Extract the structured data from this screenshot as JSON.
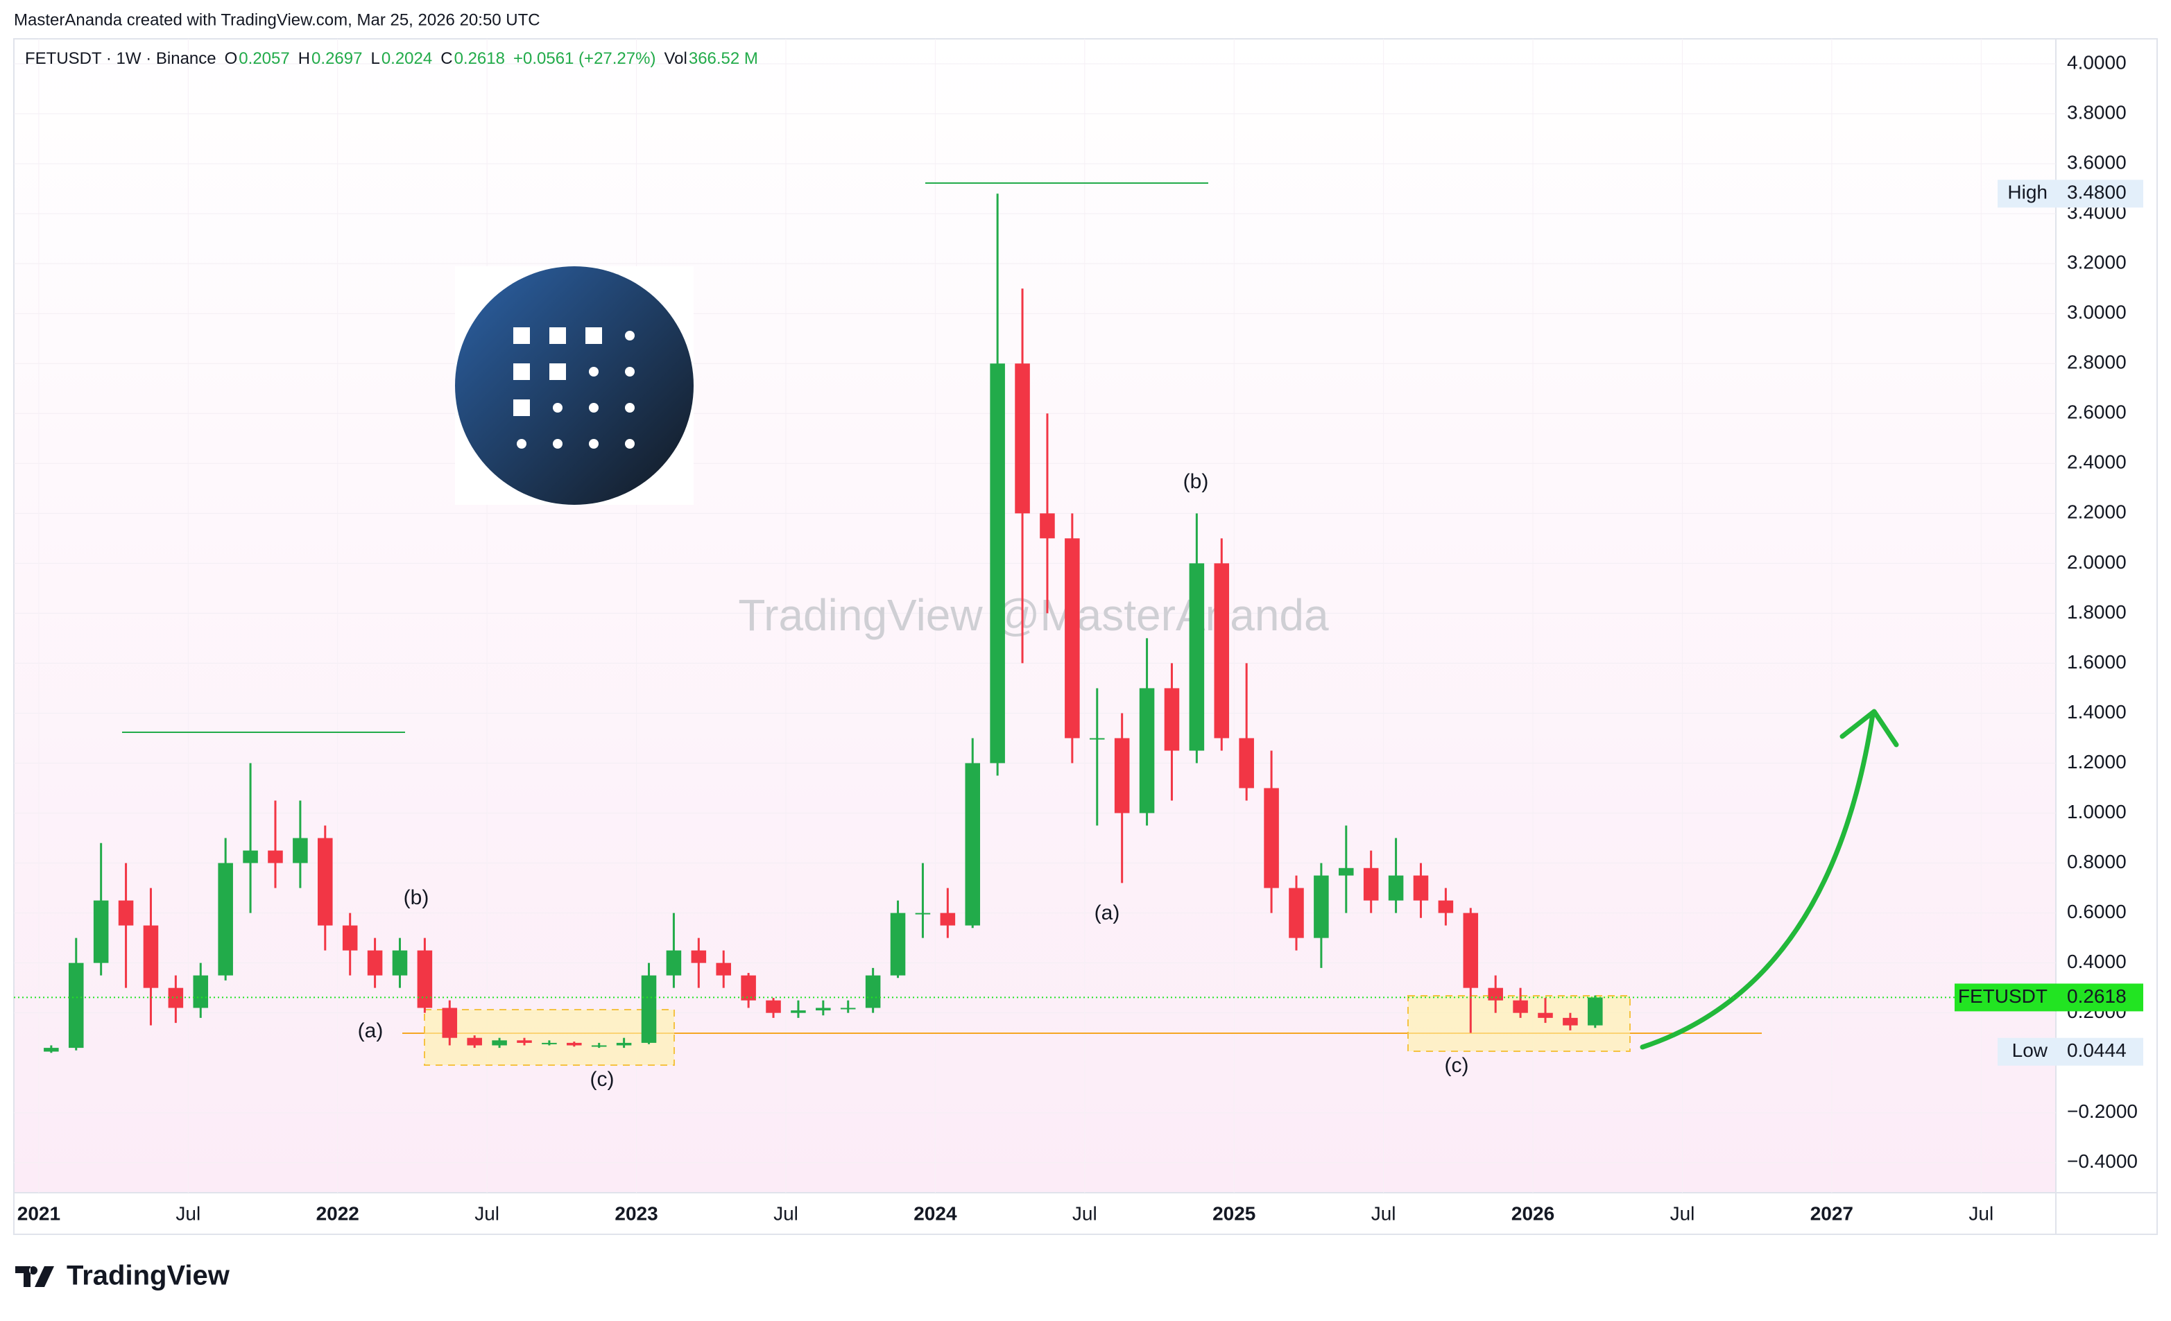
{
  "header": {
    "credit": "MasterAnanda created with TradingView.com, Mar 25, 2026 20:50 UTC"
  },
  "legend": {
    "symbol": "FETUSDT · 1W · Binance",
    "fields": [
      {
        "key": "O",
        "value": "0.2057"
      },
      {
        "key": "H",
        "value": "0.2697"
      },
      {
        "key": "L",
        "value": "0.2024"
      },
      {
        "key": "C",
        "value": "0.2618"
      }
    ],
    "change": "+0.0561 (+27.27%)",
    "vol_key": "Vol",
    "vol": "366.52 M"
  },
  "annotations": {
    "watermark": "TradingView @MasterAnanda",
    "labels": [
      "(b)",
      "(a)",
      "(c)",
      "(a)",
      "(b)",
      "(c)"
    ]
  },
  "footer": {
    "logo": "TradingView"
  },
  "chart_data": {
    "type": "candlestick",
    "up_color": "#22ab4a",
    "down_color": "#f23645",
    "x": [
      "2021-01",
      "2021-02",
      "2021-03",
      "2021-04",
      "2021-05",
      "2021-06",
      "2021-07",
      "2021-08",
      "2021-09",
      "2021-10",
      "2021-11",
      "2021-12",
      "2022-01",
      "2022-02",
      "2022-03",
      "2022-04",
      "2022-05",
      "2022-06",
      "2022-07",
      "2022-08",
      "2022-09",
      "2022-10",
      "2022-11",
      "2022-12",
      "2023-01",
      "2023-02",
      "2023-03",
      "2023-04",
      "2023-05",
      "2023-06",
      "2023-07",
      "2023-08",
      "2023-09",
      "2023-10",
      "2023-11",
      "2023-12",
      "2024-01",
      "2024-02",
      "2024-03",
      "2024-04",
      "2024-05",
      "2024-06",
      "2024-07",
      "2024-08",
      "2024-09",
      "2024-10",
      "2024-11",
      "2024-12",
      "2025-01",
      "2025-02",
      "2025-03",
      "2025-04",
      "2025-05",
      "2025-06",
      "2025-07",
      "2025-08",
      "2025-09",
      "2025-10",
      "2025-11",
      "2025-12",
      "2026-01",
      "2026-02",
      "2026-03"
    ],
    "open": [
      0.045,
      0.06,
      0.4,
      0.65,
      0.55,
      0.3,
      0.22,
      0.35,
      0.8,
      0.85,
      0.8,
      0.9,
      0.55,
      0.45,
      0.35,
      0.45,
      0.22,
      0.1,
      0.07,
      0.09,
      0.08,
      0.08,
      0.07,
      0.07,
      0.08,
      0.35,
      0.45,
      0.4,
      0.35,
      0.25,
      0.2,
      0.21,
      0.22,
      0.22,
      0.35,
      0.6,
      0.6,
      0.55,
      1.2,
      2.8,
      2.2,
      2.1,
      1.3,
      1.3,
      1.0,
      1.5,
      1.25,
      2.0,
      1.3,
      1.1,
      0.7,
      0.5,
      0.75,
      0.78,
      0.65,
      0.75,
      0.65,
      0.6,
      0.3,
      0.25,
      0.2,
      0.18,
      0.15
    ],
    "high": [
      0.07,
      0.5,
      0.88,
      0.8,
      0.7,
      0.35,
      0.4,
      0.9,
      1.2,
      1.05,
      1.05,
      0.95,
      0.6,
      0.5,
      0.5,
      0.5,
      0.25,
      0.11,
      0.1,
      0.1,
      0.09,
      0.085,
      0.08,
      0.1,
      0.4,
      0.6,
      0.5,
      0.45,
      0.36,
      0.26,
      0.25,
      0.25,
      0.25,
      0.38,
      0.65,
      0.8,
      0.7,
      1.3,
      3.48,
      3.1,
      2.6,
      2.2,
      1.5,
      1.4,
      1.7,
      1.6,
      2.2,
      2.1,
      1.6,
      1.25,
      0.75,
      0.8,
      0.95,
      0.85,
      0.9,
      0.8,
      0.7,
      0.62,
      0.35,
      0.3,
      0.26,
      0.2,
      0.2697
    ],
    "low": [
      0.04,
      0.05,
      0.35,
      0.3,
      0.15,
      0.16,
      0.18,
      0.33,
      0.6,
      0.7,
      0.7,
      0.45,
      0.35,
      0.3,
      0.3,
      0.2,
      0.07,
      0.06,
      0.06,
      0.07,
      0.07,
      0.065,
      0.06,
      0.06,
      0.075,
      0.3,
      0.3,
      0.3,
      0.22,
      0.18,
      0.18,
      0.19,
      0.2,
      0.2,
      0.34,
      0.5,
      0.5,
      0.54,
      1.15,
      1.6,
      1.8,
      1.2,
      0.95,
      0.72,
      0.95,
      1.05,
      1.2,
      1.25,
      1.05,
      0.6,
      0.45,
      0.38,
      0.6,
      0.6,
      0.6,
      0.58,
      0.55,
      0.12,
      0.2,
      0.18,
      0.16,
      0.13,
      0.14
    ],
    "close": [
      0.06,
      0.4,
      0.65,
      0.55,
      0.3,
      0.22,
      0.35,
      0.8,
      0.85,
      0.8,
      0.9,
      0.55,
      0.45,
      0.35,
      0.45,
      0.22,
      0.1,
      0.07,
      0.09,
      0.08,
      0.08,
      0.07,
      0.07,
      0.08,
      0.35,
      0.45,
      0.4,
      0.35,
      0.25,
      0.2,
      0.21,
      0.22,
      0.22,
      0.35,
      0.6,
      0.6,
      0.55,
      1.2,
      2.8,
      2.2,
      2.1,
      1.3,
      1.3,
      1.0,
      1.5,
      1.25,
      2.0,
      1.3,
      1.1,
      0.7,
      0.5,
      0.75,
      0.78,
      0.65,
      0.75,
      0.65,
      0.6,
      0.3,
      0.25,
      0.2,
      0.18,
      0.15,
      0.2618
    ],
    "xlim": [
      "2020-12",
      "2027-10"
    ],
    "xticks": [
      {
        "value": "2021-01",
        "label": "2021"
      },
      {
        "value": "2021-07",
        "label": "Jul"
      },
      {
        "value": "2022-01",
        "label": "2022"
      },
      {
        "value": "2022-07",
        "label": "Jul"
      },
      {
        "value": "2023-01",
        "label": "2023"
      },
      {
        "value": "2023-07",
        "label": "Jul"
      },
      {
        "value": "2024-01",
        "label": "2024"
      },
      {
        "value": "2024-07",
        "label": "Jul"
      },
      {
        "value": "2025-01",
        "label": "2025"
      },
      {
        "value": "2025-07",
        "label": "Jul"
      },
      {
        "value": "2026-01",
        "label": "2026"
      },
      {
        "value": "2026-07",
        "label": "Jul"
      },
      {
        "value": "2027-01",
        "label": "2027"
      },
      {
        "value": "2027-07",
        "label": "Jul"
      }
    ],
    "ylim": [
      -0.52,
      4.1
    ],
    "yticks": [
      {
        "value": 4,
        "label": "4.0000"
      },
      {
        "value": 3.8,
        "label": "3.8000"
      },
      {
        "value": 3.6,
        "label": "3.6000"
      },
      {
        "value": 3.4,
        "label": "3.4000"
      },
      {
        "value": 3.2,
        "label": "3.2000"
      },
      {
        "value": 3,
        "label": "3.0000"
      },
      {
        "value": 2.8,
        "label": "2.8000"
      },
      {
        "value": 2.6,
        "label": "2.6000"
      },
      {
        "value": 2.4,
        "label": "2.4000"
      },
      {
        "value": 2.2,
        "label": "2.2000"
      },
      {
        "value": 2,
        "label": "2.0000"
      },
      {
        "value": 1.8,
        "label": "1.8000"
      },
      {
        "value": 1.6,
        "label": "1.6000"
      },
      {
        "value": 1.4,
        "label": "1.4000"
      },
      {
        "value": 1.2,
        "label": "1.2000"
      },
      {
        "value": 1,
        "label": "1.0000"
      },
      {
        "value": 0.8,
        "label": "0.8000"
      },
      {
        "value": 0.6,
        "label": "0.6000"
      },
      {
        "value": 0.4,
        "label": "0.4000"
      },
      {
        "value": 0.2,
        "label": "0.2000"
      },
      {
        "value": -0.2,
        "label": "−0.2000"
      },
      {
        "value": -0.4,
        "label": "−0.4000"
      }
    ],
    "price_labels": [
      {
        "name": "High",
        "value": 3.48,
        "value_label": "3.4800",
        "color": "#e3effa"
      },
      {
        "name": "FETUSDT",
        "value": 0.2618,
        "value_label": "0.2618",
        "color": "#22e422"
      },
      {
        "name": "Low",
        "value": 0.0444,
        "value_label": "0.0444",
        "color": "#e3effa"
      }
    ]
  }
}
